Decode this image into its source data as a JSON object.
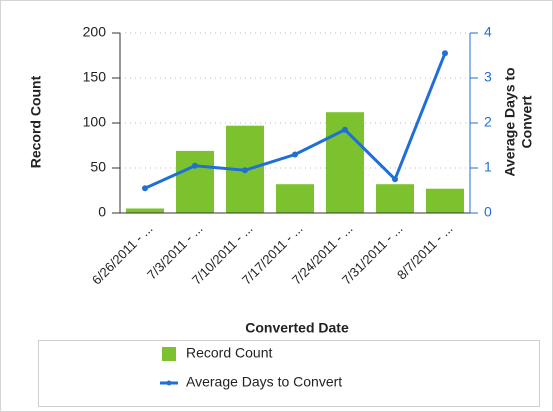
{
  "chart_data": {
    "type": "bar",
    "x_label": "Converted Date",
    "y_label": "Record Count",
    "y2_label": [
      "Average Days to",
      "Convert"
    ],
    "categories": [
      "6/26/2011 - ...",
      "7/3/2011 - ...",
      "7/10/2011 - ...",
      "7/17/2011 - ...",
      "7/24/2011 - ...",
      "7/31/2011 - ...",
      "8/7/2011 - ..."
    ],
    "series": [
      {
        "name": "Record Count",
        "type": "bar",
        "color": "#7cc22f",
        "values": [
          5,
          69,
          97,
          32,
          112,
          32,
          27
        ]
      },
      {
        "name": "Average Days to Convert",
        "type": "line",
        "axis": "y2",
        "color": "#1f6fd6",
        "values": [
          0.55,
          1.05,
          0.95,
          1.3,
          1.85,
          0.75,
          3.55
        ]
      }
    ],
    "ylim": [
      0,
      200
    ],
    "yticks": [
      0,
      50,
      100,
      150,
      200
    ],
    "y2lim": [
      0,
      4
    ],
    "y2ticks": [
      0,
      1,
      2,
      3,
      4
    ],
    "grid": true
  }
}
